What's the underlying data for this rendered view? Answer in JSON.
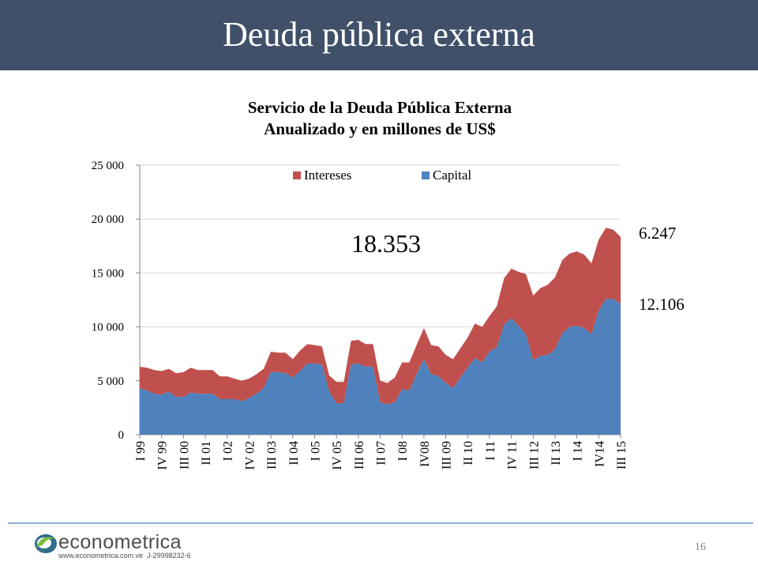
{
  "slide": {
    "title": "Deuda pública externa",
    "page_number": "16"
  },
  "logo": {
    "name": "econometrica",
    "url": "www.econometrica.com.ve",
    "rif": "J-29998232-6"
  },
  "colors": {
    "header": "#3f5068",
    "capital": "#4f81bd",
    "intereses": "#c0504d"
  },
  "chart_data": {
    "type": "area",
    "stacked": true,
    "title": "Servicio de la Deuda Pública Externa",
    "subtitle": "Anualizado y en millones de US$",
    "ylim": [
      0,
      25000
    ],
    "yticks": [
      0,
      5000,
      10000,
      15000,
      20000,
      25000
    ],
    "ytick_labels": [
      "0",
      "5 000",
      "10 000",
      "15 000",
      "20 000",
      "25 000"
    ],
    "legend_position": "top",
    "x_labels": [
      "I 99",
      "IV 99",
      "III 00",
      "II 01",
      "I 02",
      "IV 02",
      "III 03",
      "II 04",
      "I 05",
      "IV 05",
      "III 06",
      "II 07",
      "I 08",
      "IV08",
      "III 09",
      "II 10",
      "I 11",
      "IV 11",
      "III 12",
      "II 13",
      "I 14",
      "IV14",
      "III 15"
    ],
    "quarters": 67,
    "series": [
      {
        "name": "Capital",
        "values": [
          4300,
          4100,
          3800,
          3700,
          4000,
          3500,
          3500,
          3900,
          3800,
          3800,
          3800,
          3300,
          3300,
          3300,
          3100,
          3400,
          3800,
          4300,
          5800,
          5800,
          5700,
          5300,
          5900,
          6600,
          6600,
          6500,
          4000,
          2900,
          2900,
          6500,
          6600,
          6300,
          6300,
          3000,
          2800,
          3000,
          4200,
          4100,
          5600,
          7000,
          5600,
          5400,
          4800,
          4300,
          5300,
          6200,
          7100,
          6700,
          7700,
          8100,
          10200,
          10800,
          10100,
          9300,
          6900,
          7300,
          7400,
          7900,
          9400,
          10000,
          10100,
          9900,
          9300,
          11500,
          12600,
          12600,
          12106
        ]
      },
      {
        "name": "Intereses",
        "values": [
          2000,
          2100,
          2200,
          2200,
          2100,
          2200,
          2300,
          2300,
          2200,
          2200,
          2200,
          2100,
          2100,
          1900,
          1900,
          1800,
          1800,
          1800,
          1900,
          1800,
          1900,
          1700,
          1900,
          1800,
          1700,
          1700,
          1500,
          2000,
          2000,
          2200,
          2200,
          2100,
          2100,
          2000,
          2000,
          2300,
          2500,
          2600,
          2700,
          2900,
          2700,
          2800,
          2600,
          2700,
          2700,
          2800,
          3200,
          3300,
          3300,
          3800,
          4300,
          4600,
          5000,
          5600,
          6000,
          6300,
          6500,
          6700,
          6800,
          6800,
          6900,
          6800,
          6600,
          6600,
          6600,
          6400,
          6247
        ]
      }
    ],
    "annotations": {
      "total": "18.353",
      "intereses_last": "6.247",
      "capital_last": "12.106"
    }
  }
}
